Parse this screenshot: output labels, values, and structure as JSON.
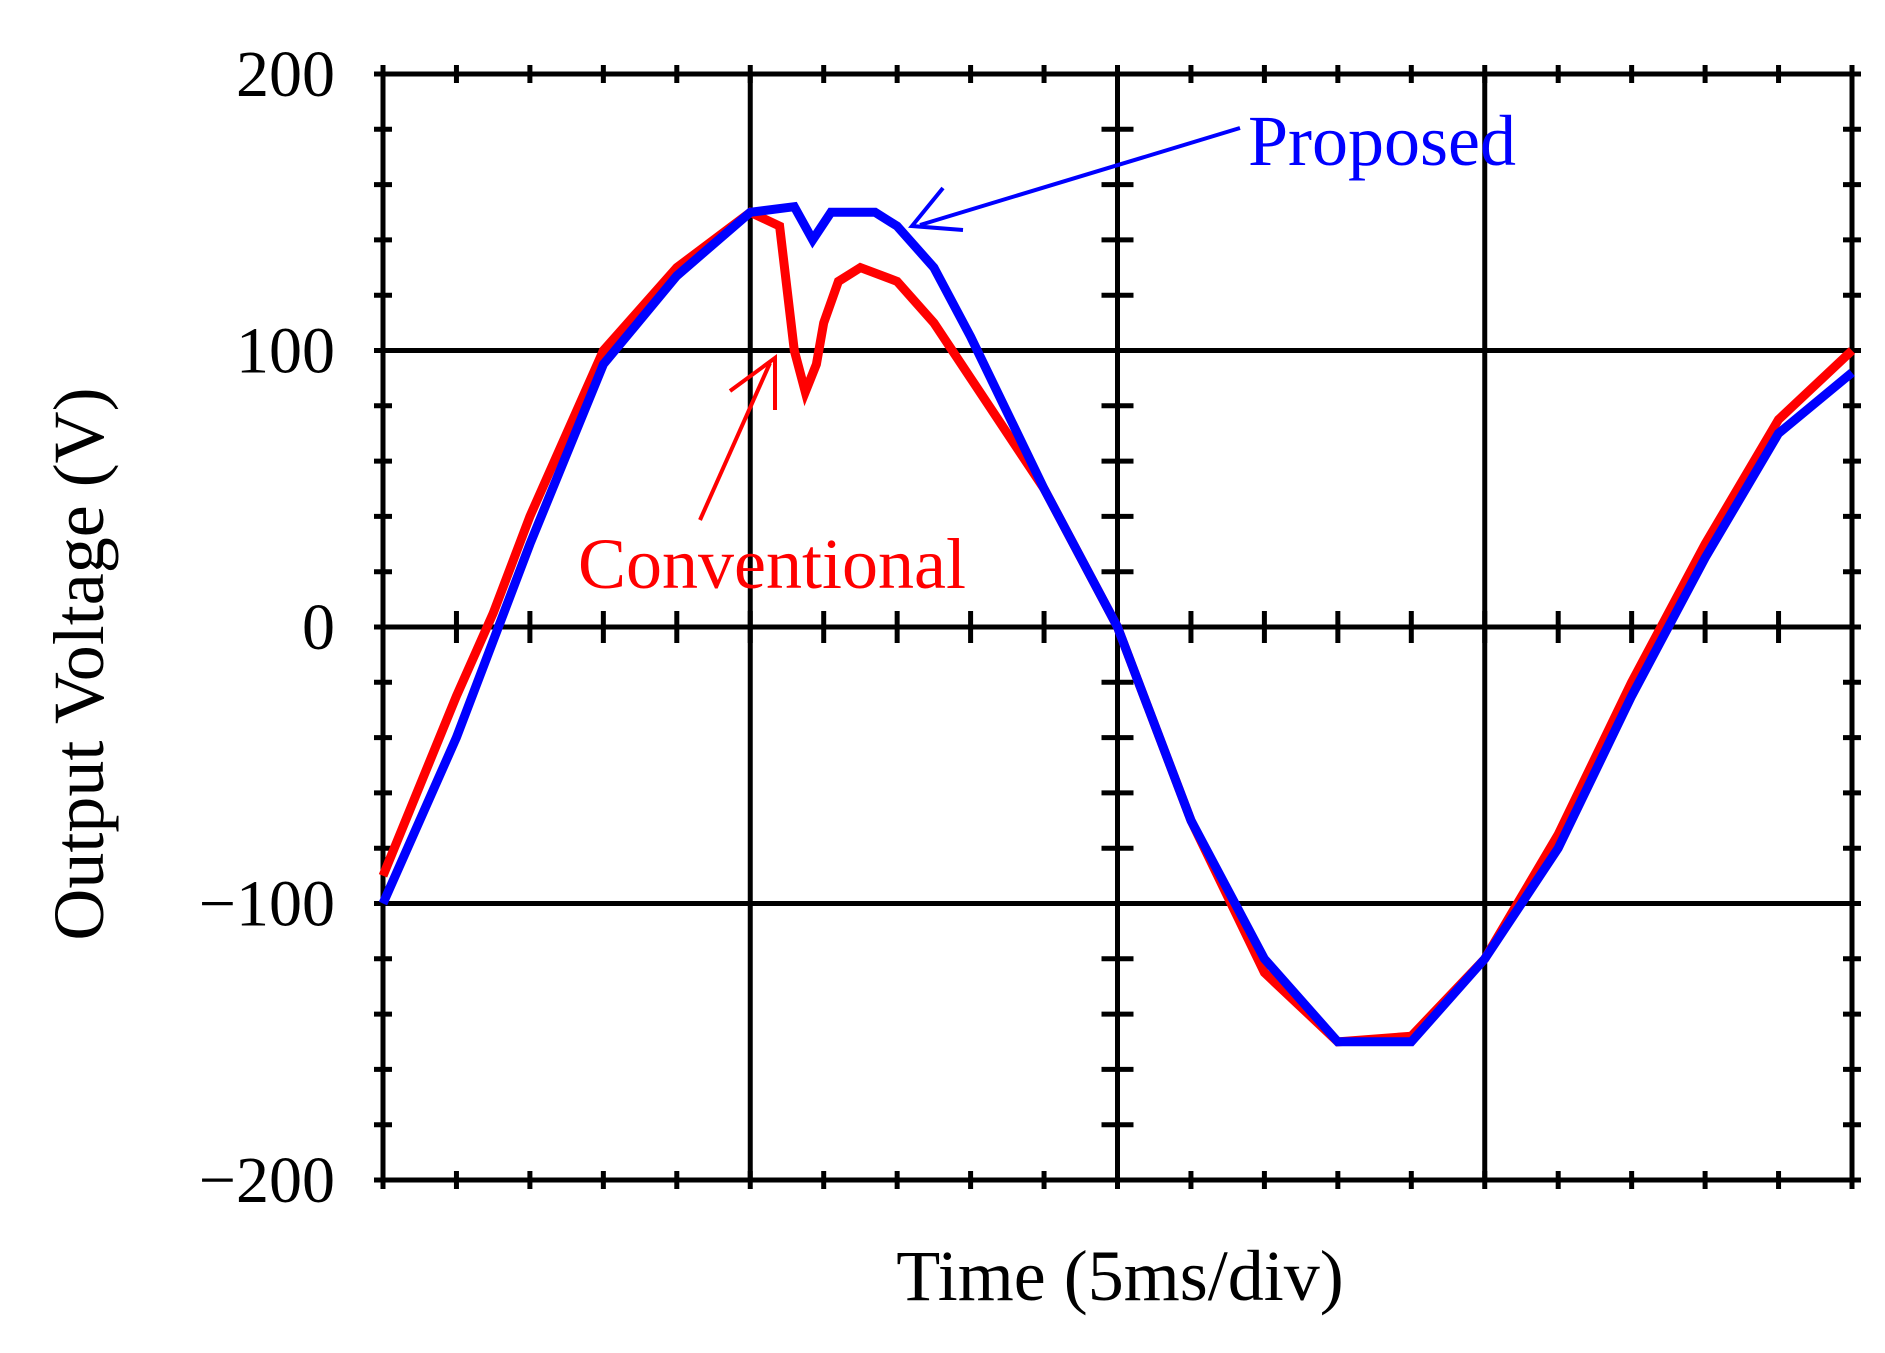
{
  "chart_data": {
    "type": "line",
    "title": "",
    "xlabel": "Time (5ms/div)",
    "ylabel": "Output Voltage (V)",
    "xlim": [
      0,
      20
    ],
    "ylim": [
      -200,
      200
    ],
    "x_divisions": 4,
    "y_ticks": [
      200,
      100,
      0,
      -100,
      -200
    ],
    "y_tick_labels": [
      "200",
      "100",
      "0",
      "−100",
      "−200"
    ],
    "grid": true,
    "legend": "none",
    "series": [
      {
        "name": "Conventional",
        "color": "#ff0000",
        "x": [
          0,
          1,
          1.5,
          2,
          3,
          4,
          5,
          5.4,
          5.6,
          5.75,
          5.9,
          6,
          6.2,
          6.5,
          7,
          7.5,
          8,
          9,
          10,
          11,
          12,
          13,
          14,
          15,
          16,
          17,
          18,
          19,
          20
        ],
        "y": [
          -90,
          -25,
          5,
          40,
          100,
          130,
          150,
          145,
          100,
          85,
          95,
          110,
          125,
          130,
          125,
          110,
          90,
          50,
          0,
          -70,
          -125,
          -150,
          -148,
          -120,
          -75,
          -20,
          30,
          75,
          100
        ]
      },
      {
        "name": "Proposed",
        "color": "#0000ff",
        "x": [
          0,
          1,
          1.5,
          2,
          3,
          4,
          5,
          5.6,
          5.85,
          6.1,
          6.35,
          6.7,
          7,
          7.5,
          8,
          9,
          10,
          11,
          12,
          13,
          14,
          15,
          16,
          17,
          18,
          19,
          20
        ],
        "y": [
          -100,
          -40,
          -5,
          30,
          95,
          127,
          150,
          152,
          140,
          150,
          150,
          150,
          145,
          130,
          105,
          50,
          0,
          -70,
          -120,
          -150,
          -150,
          -120,
          -80,
          -25,
          25,
          70,
          92
        ]
      }
    ],
    "annotations": [
      {
        "text": "Proposed",
        "color": "#0000ff",
        "points_to": {
          "x": 7.05,
          "y": 145
        }
      },
      {
        "text": "Conventional",
        "color": "#ff0000",
        "points_to": {
          "x": 5.4,
          "y": 95
        }
      }
    ]
  }
}
